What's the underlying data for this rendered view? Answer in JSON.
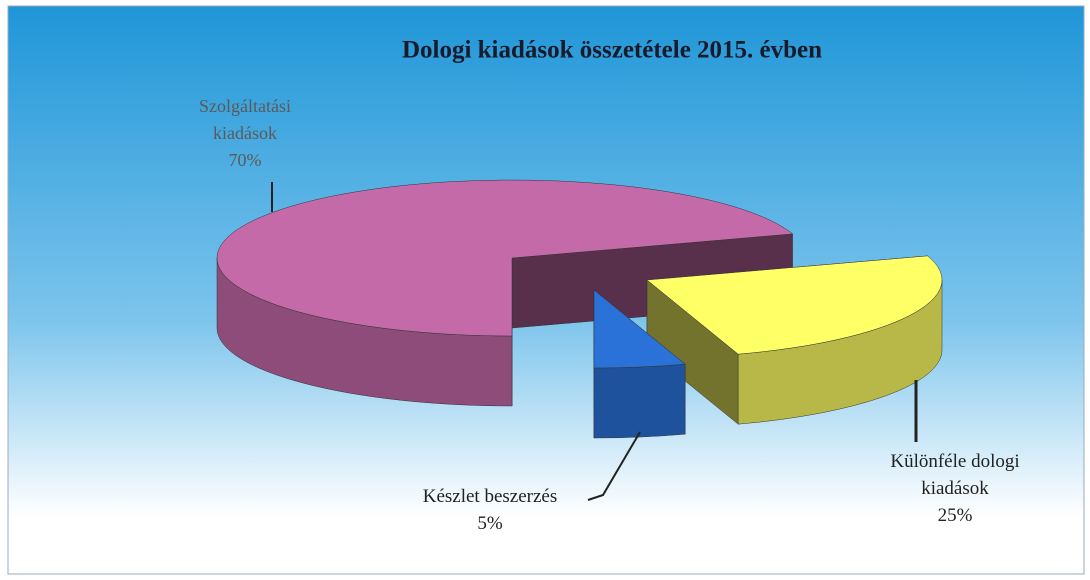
{
  "chart_data": {
    "type": "pie3d",
    "title": "Dologi kiadások összetétele 2015. évben",
    "categories": [
      "Szolgáltatási kiadások",
      "Különféle dologi kiadások",
      "Készlet beszerzés"
    ],
    "values": [
      70,
      25,
      5
    ],
    "value_labels": [
      "70%",
      "25%",
      "5%"
    ],
    "colors": [
      "#c46aa8",
      "#ffff66",
      "#2a72d8"
    ]
  }
}
